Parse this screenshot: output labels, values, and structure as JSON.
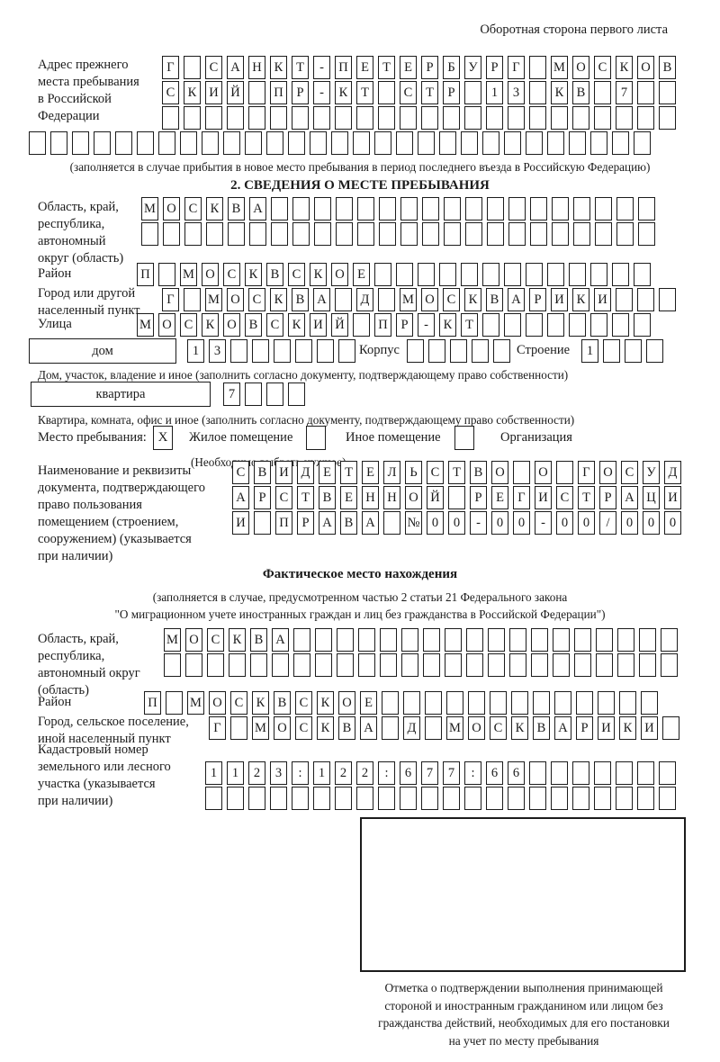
{
  "page": {
    "header_note": "Оборотная сторона первого листа"
  },
  "prev_address": {
    "label": "Адрес прежнего\nместа пребывания\nв Российской\nФедерации",
    "rows": [
      {
        "cells": 24,
        "value": "Г САНКТ-ПЕТЕРБУРГ МОСКОВ"
      },
      {
        "cells": 24,
        "value": "СКИЙ ПР-КТ СТР 13 КВ 7"
      },
      {
        "cells": 24,
        "value": ""
      },
      {
        "cells": 29,
        "value": ""
      }
    ],
    "note": "(заполняется в случае прибытия в новое место пребывания в период последнего въезда в Российскую Федерацию)"
  },
  "section2": {
    "title": "2. СВЕДЕНИЯ О МЕСТЕ ПРЕБЫВАНИЯ",
    "oblast": {
      "label": "Область, край,\nреспублика,\nавтономный\nокруг (область)",
      "rows": [
        {
          "cells": 24,
          "value": "МОСКВА"
        },
        {
          "cells": 24,
          "value": ""
        }
      ]
    },
    "rayon": {
      "label": "Район",
      "row": {
        "cells": 24,
        "value": "П МОСКВСКОЕ"
      }
    },
    "gorod": {
      "label": "Город или другой\nнаселенный пункт",
      "row": {
        "cells": 24,
        "value": "Г МОСКВА Д МОСКВАРИКИ"
      }
    },
    "ulitsa": {
      "label": "Улица",
      "row": {
        "cells": 24,
        "value": "МОСКОВСКИЙ ПР-КТ"
      }
    },
    "dom": {
      "box_label": "дом",
      "row1": {
        "cells": 8,
        "value": "13"
      },
      "korpus_label": "Корпус",
      "row2": {
        "cells": 5,
        "value": ""
      },
      "stroenie_label": "Строение",
      "row3": {
        "cells": 4,
        "value": "1"
      },
      "note": "Дом, участок, владение и иное (заполнить согласно документу, подтверждающему право собственности)"
    },
    "kvartira": {
      "box_label": "квартира",
      "row": {
        "cells": 4,
        "value": "7"
      },
      "note": "Квартира, комната, офис и иное (заполнить согласно документу, подтверждающему право собственности)"
    },
    "mesto": {
      "label": "Место пребывания:",
      "options": [
        {
          "label": "Жилое помещение",
          "checked": "X"
        },
        {
          "label": "Иное помещение",
          "checked": ""
        },
        {
          "label": "Организация",
          "checked": ""
        }
      ],
      "note": "(Необходимо выбрать нужное)"
    },
    "document": {
      "label": "Наименование и реквизиты\nдокумента, подтверждающего\nправо пользования\nпомещением (строением,\nсооружением) (указывается\nпри наличии)",
      "rows": [
        {
          "cells": 21,
          "value": "СВИДЕТЕЛЬСТВО О ГОСУД"
        },
        {
          "cells": 21,
          "value": "АРСТВЕННОЙ РЕГИСТРАЦИ"
        },
        {
          "cells": 21,
          "value": "И ПРАВА №00-00-00/000"
        }
      ]
    }
  },
  "actual_location": {
    "title": "Фактическое место нахождения",
    "note1": "(заполняется в случае, предусмотренном частью 2 статьи 21 Федерального закона",
    "note2": "\"О миграционном учете иностранных граждан и лиц без гражданства в Российской Федерации\")",
    "oblast": {
      "label": "Область, край,\nреспублика,\nавтономный округ\n(область)",
      "rows": [
        {
          "cells": 24,
          "value": "МОСКВА"
        },
        {
          "cells": 24,
          "value": ""
        }
      ]
    },
    "rayon": {
      "label": "Район",
      "row": {
        "cells": 24,
        "value": "П МОСКВСКОЕ"
      }
    },
    "gorod": {
      "label": "Город, сельское поселение,\nиной населенный пункт",
      "row": {
        "cells": 22,
        "value": "Г МОСКВА Д МОСКВАРИКИ"
      }
    },
    "kadastr": {
      "label": "Кадастровый номер\nземельного или лесного\nучастка (указывается\nпри наличии)",
      "rows": [
        {
          "cells": 22,
          "value": "1123:122:677:66"
        },
        {
          "cells": 22,
          "value": ""
        }
      ]
    }
  },
  "stamp": {
    "caption": "Отметка о подтверждении выполнения принимающей\nстороной и иностранным гражданином или лицом без\nгражданства действий, необходимых для его постановки\nна учет по месту пребывания"
  }
}
